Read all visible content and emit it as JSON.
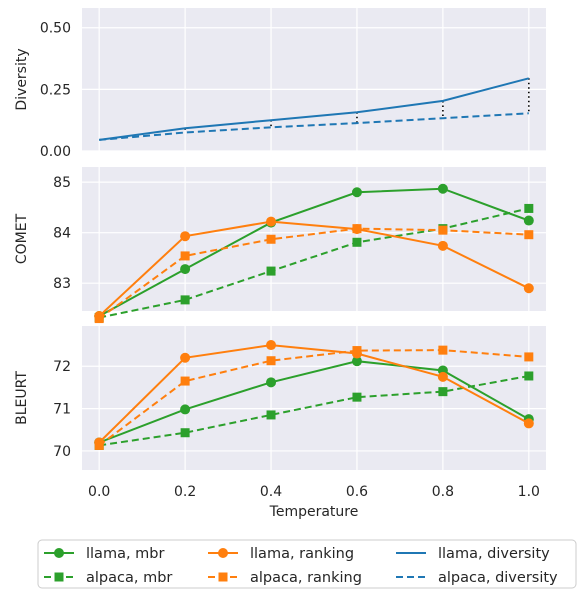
{
  "chart_data": [
    {
      "type": "line",
      "ylabel": "Diversity",
      "xlabel": "",
      "x": [
        0.0,
        0.2,
        0.4,
        0.6,
        0.8,
        1.0
      ],
      "ylim": [
        0.0,
        0.58
      ],
      "yticks": [
        0.0,
        0.25,
        0.5
      ],
      "ytick_labels": [
        "0.00",
        "0.25",
        "0.50"
      ],
      "grid": true,
      "series": [
        {
          "name": "llama, diversity",
          "values": [
            0.045,
            0.092,
            0.125,
            0.157,
            0.203,
            0.295
          ]
        },
        {
          "name": "alpaca, diversity",
          "values": [
            0.045,
            0.075,
            0.096,
            0.113,
            0.133,
            0.153
          ]
        }
      ],
      "annotations": "dotted vertical lines between the two diversity curves at each x"
    },
    {
      "type": "line",
      "ylabel": "COMET",
      "xlabel": "",
      "x": [
        0.0,
        0.2,
        0.4,
        0.6,
        0.8,
        1.0
      ],
      "ylim": [
        82.45,
        85.3
      ],
      "yticks": [
        83,
        84,
        85
      ],
      "ytick_labels": [
        "83",
        "84",
        "85"
      ],
      "grid": true,
      "series": [
        {
          "name": "llama, mbr",
          "values": [
            82.35,
            83.28,
            84.2,
            84.8,
            84.87,
            84.24
          ]
        },
        {
          "name": "alpaca, mbr",
          "values": [
            82.32,
            82.67,
            83.24,
            83.81,
            84.08,
            84.48
          ]
        },
        {
          "name": "llama, ranking",
          "values": [
            82.35,
            83.93,
            84.22,
            84.07,
            83.74,
            82.9
          ]
        },
        {
          "name": "alpaca, ranking",
          "values": [
            82.3,
            83.54,
            83.87,
            84.08,
            84.05,
            83.96
          ]
        }
      ]
    },
    {
      "type": "line",
      "ylabel": "BLEURT",
      "xlabel": "Temperature",
      "x": [
        0.0,
        0.2,
        0.4,
        0.6,
        0.8,
        1.0
      ],
      "xticks": [
        "0.0",
        "0.2",
        "0.4",
        "0.6",
        "0.8",
        "1.0"
      ],
      "ylim": [
        69.55,
        72.95
      ],
      "yticks": [
        70,
        71,
        72
      ],
      "ytick_labels": [
        "70",
        "71",
        "72"
      ],
      "grid": true,
      "series": [
        {
          "name": "llama, mbr",
          "values": [
            70.2,
            70.98,
            71.62,
            72.12,
            71.9,
            70.75
          ]
        },
        {
          "name": "alpaca, mbr",
          "values": [
            70.13,
            70.43,
            70.85,
            71.27,
            71.4,
            71.77
          ]
        },
        {
          "name": "llama, ranking",
          "values": [
            70.2,
            72.2,
            72.5,
            72.3,
            71.75,
            70.65
          ]
        },
        {
          "name": "alpaca, ranking",
          "values": [
            70.13,
            71.65,
            72.13,
            72.37,
            72.38,
            72.22
          ]
        }
      ]
    }
  ],
  "legend": {
    "placement": "bottom",
    "entries": [
      {
        "label": "llama, mbr",
        "color": "#2ca02c",
        "dash": "solid",
        "marker": "circle"
      },
      {
        "label": "alpaca, mbr",
        "color": "#2ca02c",
        "dash": "dashed",
        "marker": "square"
      },
      {
        "label": "llama, ranking",
        "color": "#ff7f0e",
        "dash": "solid",
        "marker": "circle"
      },
      {
        "label": "alpaca, ranking",
        "color": "#ff7f0e",
        "dash": "dashed",
        "marker": "square"
      },
      {
        "label": "llama, diversity",
        "color": "#1f77b4",
        "dash": "solid",
        "marker": "none"
      },
      {
        "label": "alpaca, diversity",
        "color": "#1f77b4",
        "dash": "dashed",
        "marker": "none"
      }
    ]
  },
  "colors": {
    "mbr": "#2ca02c",
    "ranking": "#ff7f0e",
    "diversity": "#1f77b4",
    "panel_background": "#eaeaf2",
    "grid": "#ffffff"
  }
}
